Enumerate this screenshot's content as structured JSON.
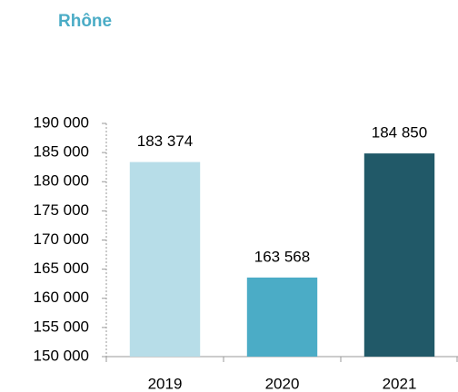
{
  "chart_data": {
    "type": "bar",
    "title": "Rhône",
    "categories": [
      "2019",
      "2020",
      "2021"
    ],
    "values": [
      183374,
      163568,
      184850
    ],
    "value_labels": [
      "183 374",
      "163 568",
      "184 850"
    ],
    "colors": [
      "#b7dde8",
      "#4bacc6",
      "#215968"
    ],
    "ylim": [
      150000,
      190000
    ],
    "yticks": [
      {
        "value": 150000,
        "label": "150 000"
      },
      {
        "value": 155000,
        "label": "155 000"
      },
      {
        "value": 160000,
        "label": "160 000"
      },
      {
        "value": 165000,
        "label": "165 000"
      },
      {
        "value": 170000,
        "label": "170 000"
      },
      {
        "value": 175000,
        "label": "175 000"
      },
      {
        "value": 180000,
        "label": "180 000"
      },
      {
        "value": 185000,
        "label": "185 000"
      },
      {
        "value": 190000,
        "label": "190 000"
      }
    ],
    "grid": false
  }
}
